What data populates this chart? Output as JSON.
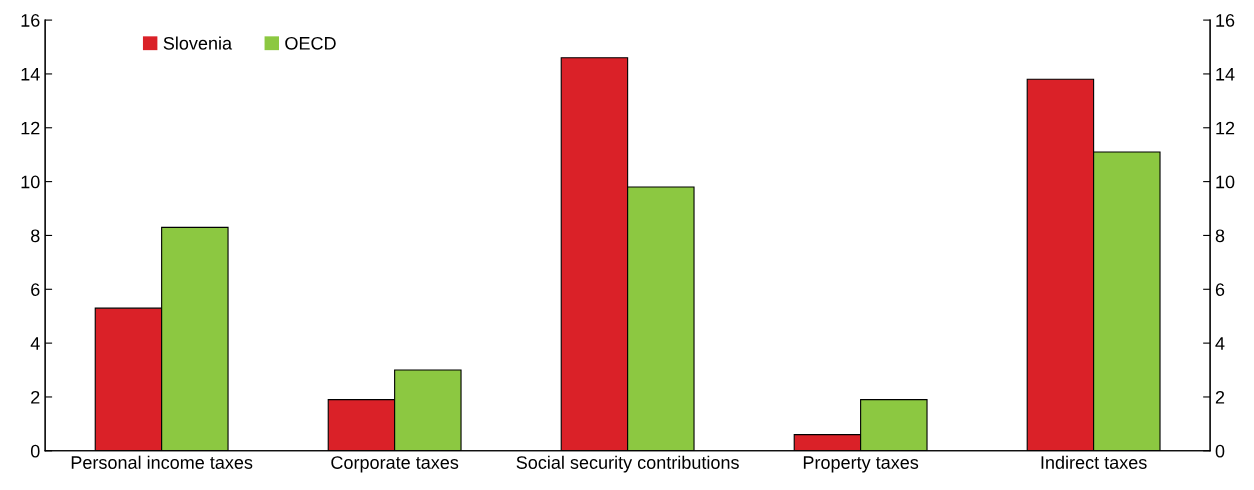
{
  "chart_data": {
    "type": "bar",
    "categories": [
      "Personal income taxes",
      "Corporate taxes",
      "Social security contributions",
      "Property taxes",
      "Indirect taxes"
    ],
    "series": [
      {
        "name": "Slovenia",
        "color": "#da2128",
        "values": [
          5.3,
          1.9,
          14.6,
          0.6,
          13.8
        ]
      },
      {
        "name": "OECD",
        "color": "#8cc841",
        "values": [
          8.3,
          3.0,
          9.8,
          1.9,
          11.1
        ]
      }
    ],
    "ylim": [
      0,
      16
    ],
    "yticks": [
      0,
      2,
      4,
      6,
      8,
      10,
      12,
      14,
      16
    ],
    "y2lim": [
      0,
      16
    ],
    "y2ticks": [
      0,
      2,
      4,
      6,
      8,
      10,
      12,
      14,
      16
    ],
    "grid": false,
    "legend": "top left"
  }
}
